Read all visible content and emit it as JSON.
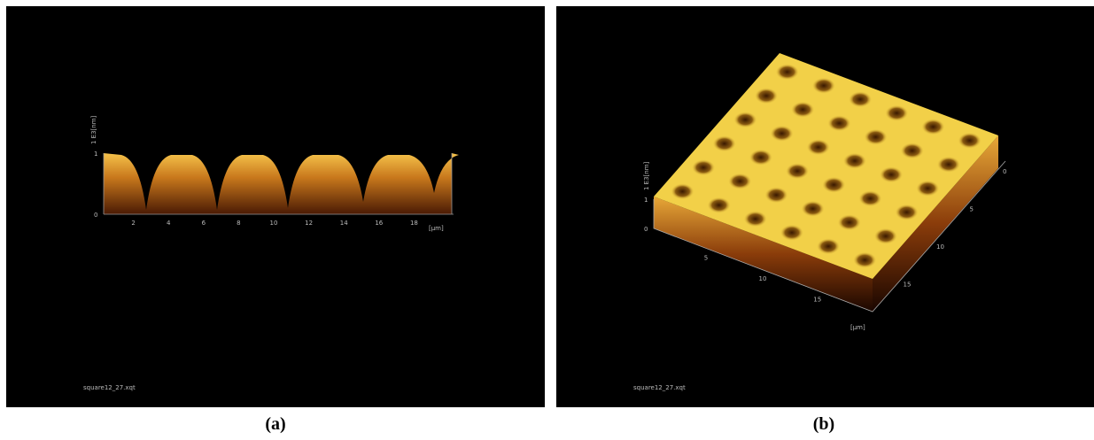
{
  "panels": [
    {
      "caption": "(a)",
      "file": "square12_27.xqt",
      "z_label": "1 E3[nm]",
      "z_ticks": [
        1,
        0
      ],
      "x_ticks": [
        2,
        4,
        6,
        8,
        10,
        12,
        14,
        16,
        18
      ],
      "x_unit": "[µm]"
    },
    {
      "caption": "(b)",
      "file": "square12_27.xqt",
      "z_label": "1 E3[nm]",
      "z_ticks": [
        1,
        0
      ],
      "x_ticks": [
        5,
        10,
        15
      ],
      "y_ticks": [
        0,
        5,
        10,
        15
      ],
      "x_unit": "[µm]"
    }
  ]
}
